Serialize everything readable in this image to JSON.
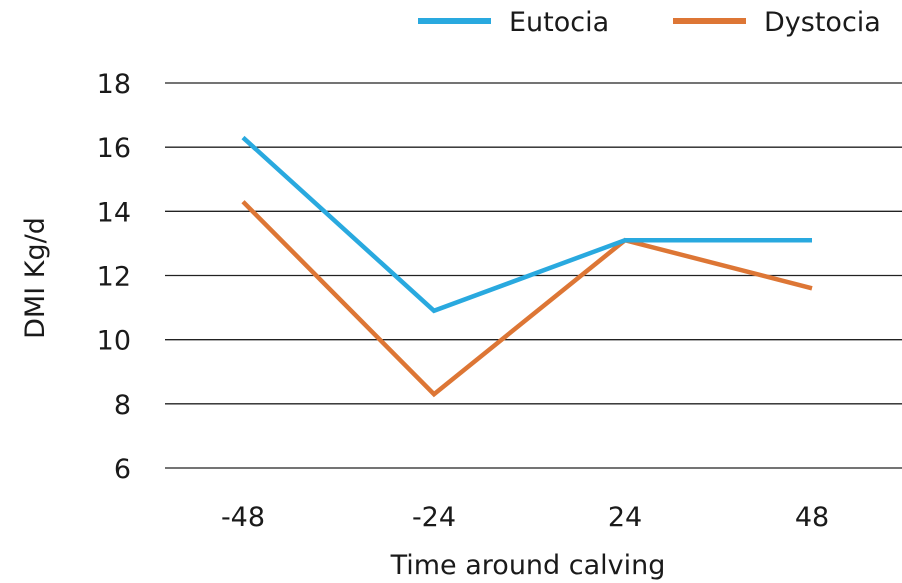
{
  "chart_data": {
    "type": "line",
    "title": "",
    "xlabel": "Time around calving",
    "ylabel": "DMI Kg/d",
    "categories": [
      "-48",
      "-24",
      "24",
      "48"
    ],
    "ylim": [
      6,
      18
    ],
    "yticks": [
      "6",
      "8",
      "10",
      "12",
      "14",
      "16",
      "18"
    ],
    "grid": "horizontal",
    "legend_position": "top-right",
    "series": [
      {
        "name": "Eutocia",
        "color": "#29a9df",
        "values": [
          16.3,
          10.9,
          13.1,
          13.1
        ]
      },
      {
        "name": "Dystocia",
        "color": "#dd7635",
        "values": [
          14.3,
          8.3,
          13.1,
          11.6
        ]
      }
    ]
  }
}
